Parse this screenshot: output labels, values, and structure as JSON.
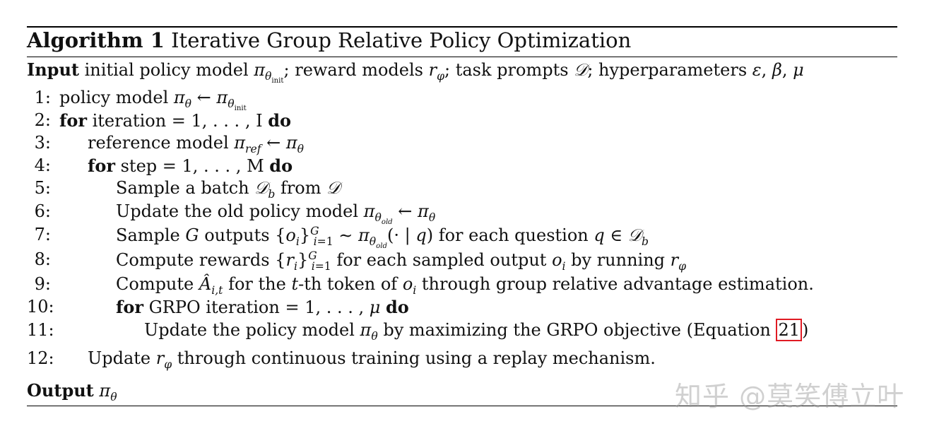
{
  "algorithm": {
    "label": "Algorithm 1",
    "title": "Iterative Group Relative Policy Optimization",
    "input_label": "Input",
    "input_text": "initial policy model πθinit; reward models rφ; task prompts 𝒟; hyperparameters ε, β, μ",
    "output_label": "Output",
    "output_value": "πθ",
    "lines": [
      {
        "num": "1:",
        "text": "policy model πθ ← πθinit"
      },
      {
        "num": "2:",
        "text": "for iteration = 1, . . . , I do"
      },
      {
        "num": "3:",
        "text": "reference model πref ← πθ"
      },
      {
        "num": "4:",
        "text": "for step = 1, . . . , M do"
      },
      {
        "num": "5:",
        "text": "Sample a batch 𝒟b from 𝒟"
      },
      {
        "num": "6:",
        "text": "Update the old policy model πθold ← πθ"
      },
      {
        "num": "7:",
        "text": "Sample G outputs {oi}Gi=1 ∼ πθold(· | q) for each question q ∈ 𝒟b"
      },
      {
        "num": "8:",
        "text": "Compute rewards {ri}Gi=1 for each sampled output oi by running rφ"
      },
      {
        "num": "9:",
        "text": "Compute Âi,t for the t-th token of oi through group relative advantage estimation."
      },
      {
        "num": "10:",
        "text": "for GRPO iteration = 1, . . . , μ do"
      },
      {
        "num": "11:",
        "text": "Update the policy model πθ by maximizing the GRPO objective (Equation 21)"
      },
      {
        "num": "12:",
        "text": "Update rφ through continuous training using a replay mechanism."
      }
    ],
    "equation_ref": "21"
  },
  "watermark": "知乎 @莫笑傅立叶",
  "colors": {
    "rule": "#000000",
    "ref_box": "#e01b24"
  }
}
